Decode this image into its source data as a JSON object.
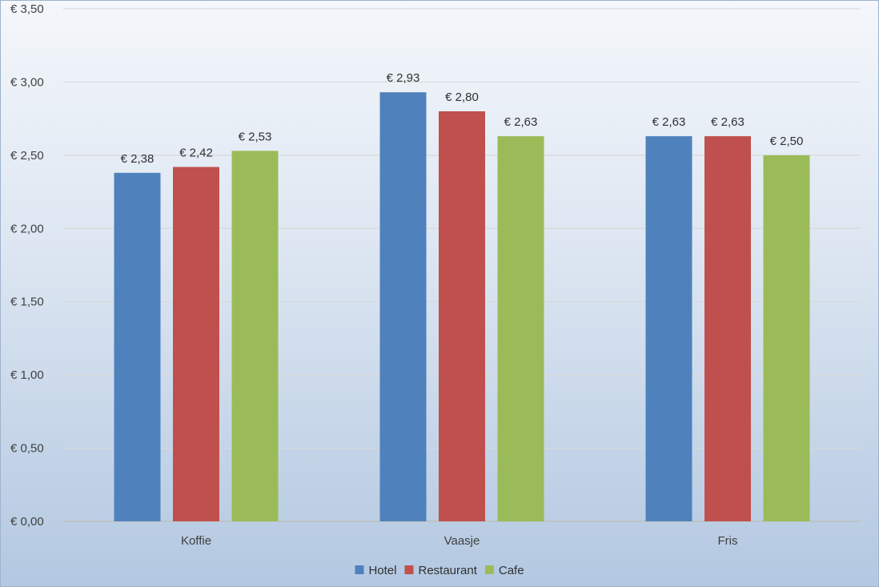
{
  "chart_data": {
    "type": "bar",
    "title": "",
    "xlabel": "",
    "ylabel": "",
    "categories": [
      "Koffie",
      "Vaasje",
      "Fris"
    ],
    "series": [
      {
        "name": "Hotel",
        "color": "#4f81bd",
        "values": [
          2.38,
          2.93,
          2.63
        ],
        "labels": [
          "€ 2,38",
          "€ 2,93",
          "€ 2,63"
        ]
      },
      {
        "name": "Restaurant",
        "color": "#c0504d",
        "values": [
          2.42,
          2.8,
          2.63
        ],
        "labels": [
          "€ 2,42",
          "€ 2,80",
          "€ 2,63"
        ]
      },
      {
        "name": "Cafe",
        "color": "#9bbb59",
        "values": [
          2.53,
          2.63,
          2.5
        ],
        "labels": [
          "€ 2,53",
          "€ 2,63",
          "€ 2,50"
        ]
      }
    ],
    "ylim": [
      0,
      3.5
    ],
    "yticks": [
      0,
      0.5,
      1.0,
      1.5,
      2.0,
      2.5,
      3.0,
      3.5
    ],
    "ytick_labels": [
      "€ 0,00",
      "€ 0,50",
      "€ 1,00",
      "€ 1,50",
      "€ 2,00",
      "€ 2,50",
      "€ 3,00",
      "€ 3,50"
    ],
    "grid": true,
    "legend_position": "bottom"
  }
}
